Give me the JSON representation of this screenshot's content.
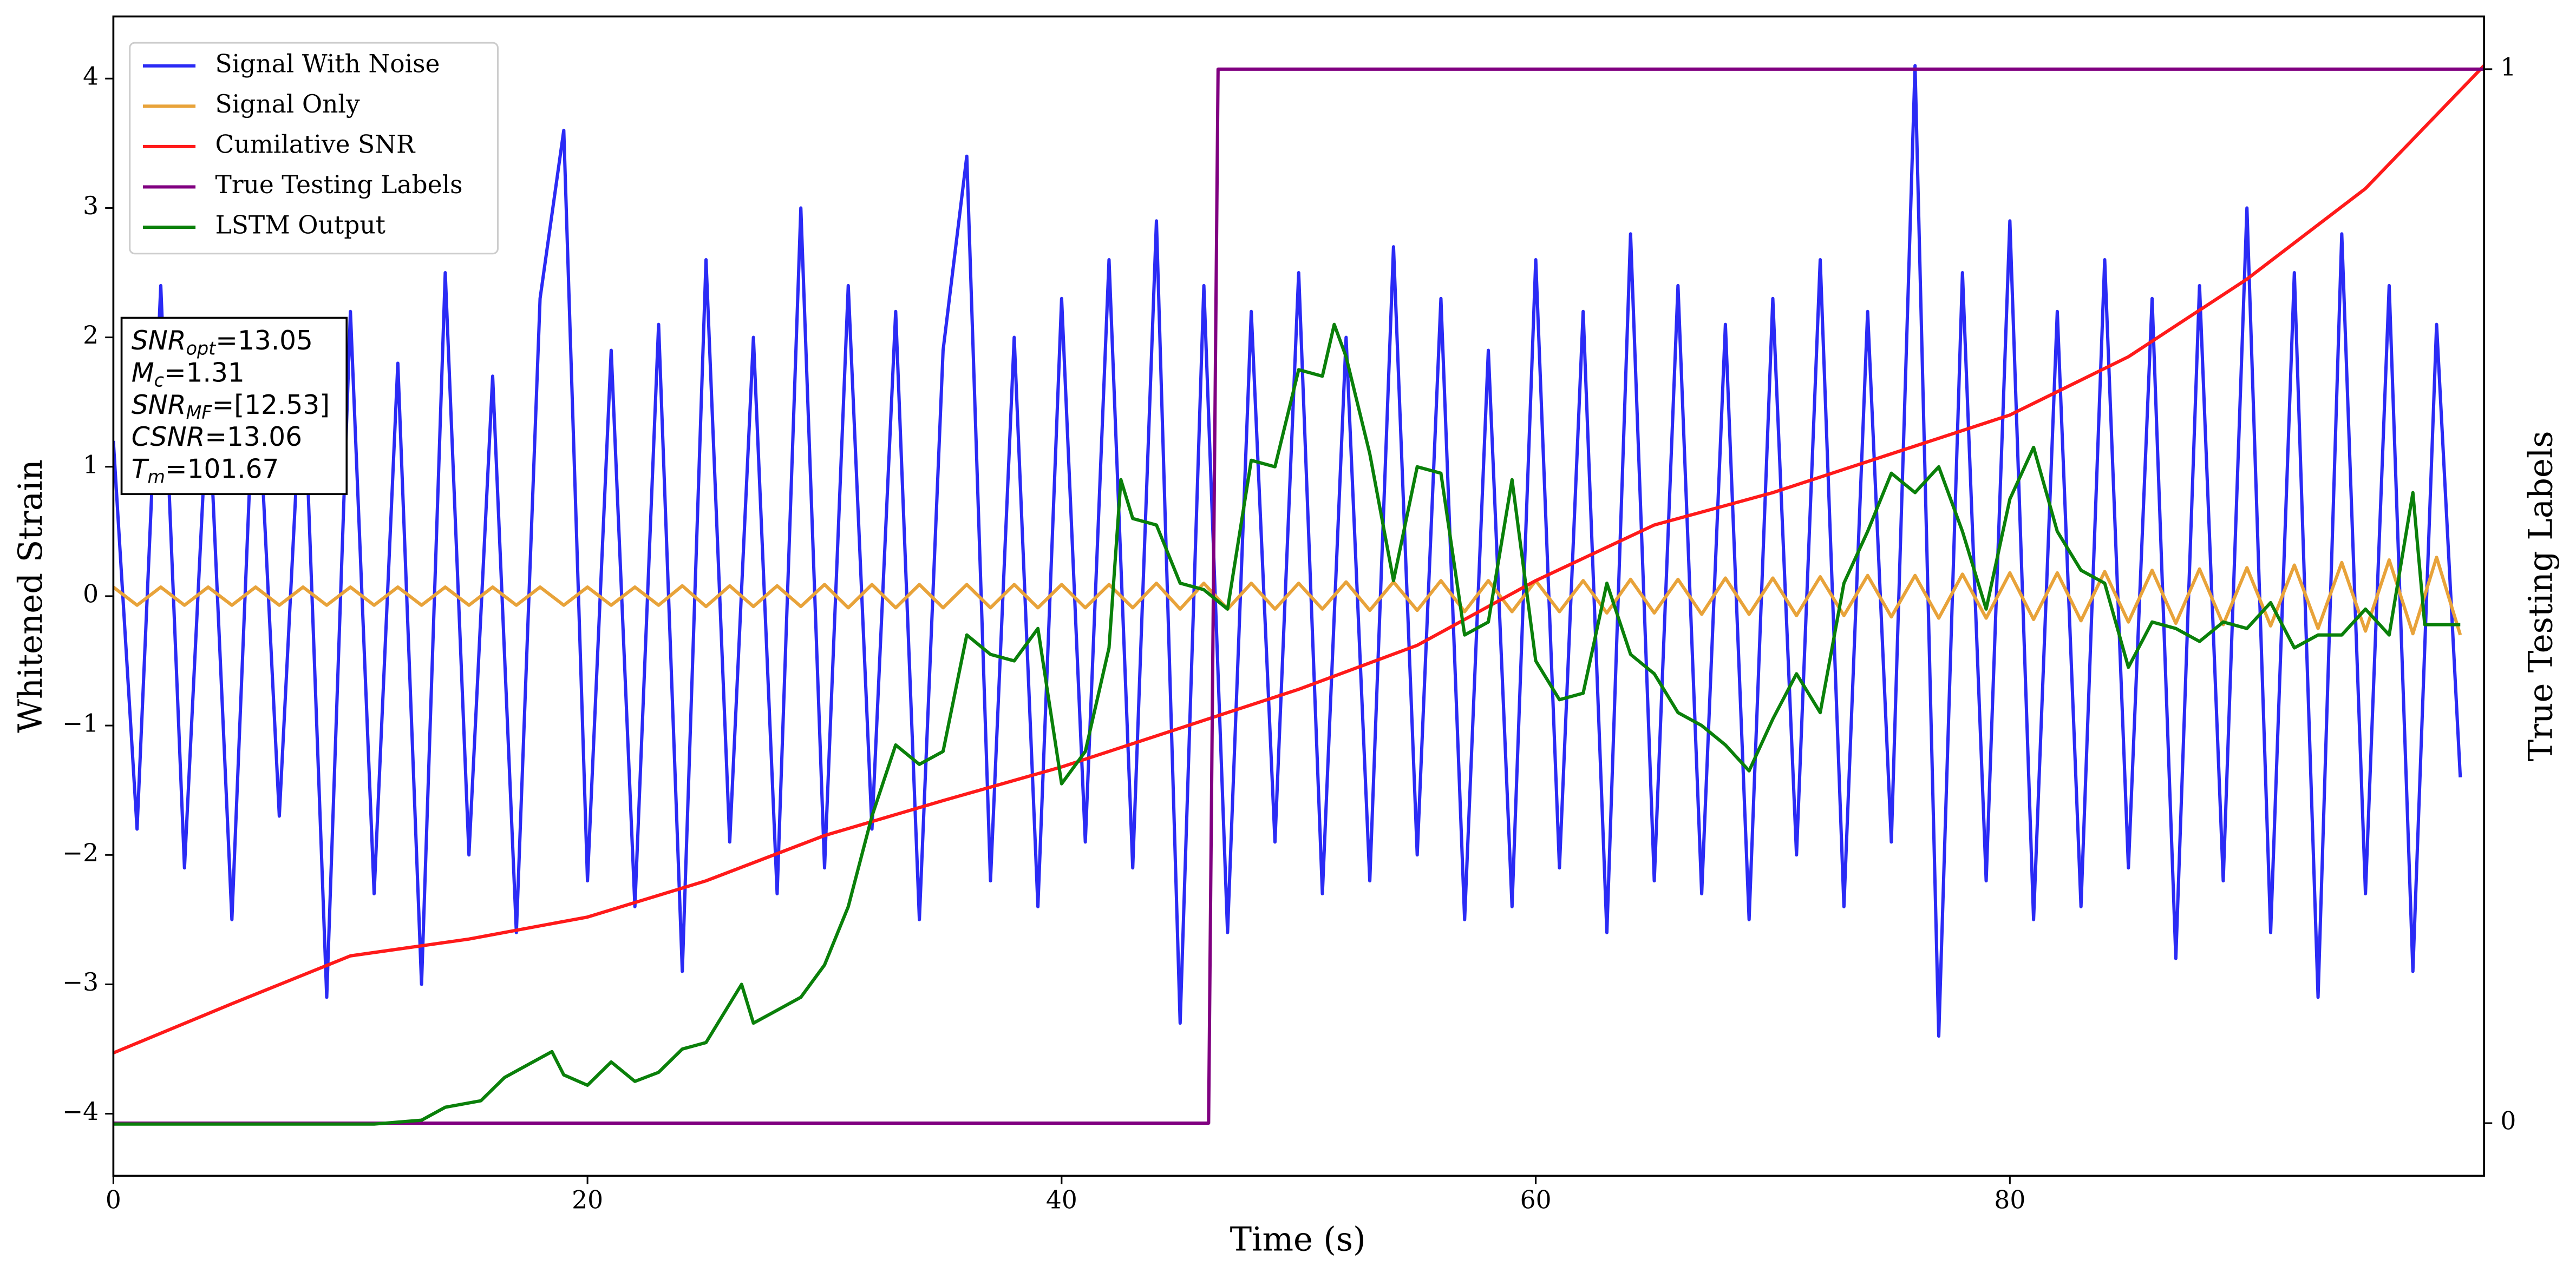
{
  "chart_data": {
    "type": "line",
    "xlabel": "Time (s)",
    "ylabel": "Whitened Strain",
    "y2label": "True Testing Labels",
    "xlim": [
      0,
      100
    ],
    "xticks": [
      0,
      20,
      40,
      60,
      80
    ],
    "ylim": [
      -4.48,
      4.48
    ],
    "yticks": [
      {
        "value": -4,
        "label": "−4"
      },
      {
        "value": -3,
        "label": "−3"
      },
      {
        "value": -2,
        "label": "−2"
      },
      {
        "value": -1,
        "label": "−1"
      },
      0,
      1,
      2,
      3,
      4
    ],
    "y2lim": [
      -0.05,
      1.05
    ],
    "y2ticks": [
      0,
      1
    ],
    "legend": "upper left",
    "annotation": [
      {
        "main": "SNR",
        "sub": "opt",
        "rest": "=13.05"
      },
      {
        "main": "M",
        "sub": "c",
        "rest": "=1.31"
      },
      {
        "main": "SNR",
        "sub": "MF",
        "rest": "=[12.53]"
      },
      {
        "main": "CSNR",
        "sub": null,
        "rest": "=13.06"
      },
      {
        "main": "T",
        "sub": "m",
        "rest": "=101.67"
      }
    ],
    "series": [
      {
        "name": "Signal With Noise",
        "color": "#2b2bf5",
        "x": [
          0,
          1,
          2,
          3,
          4,
          5,
          6,
          7,
          8,
          9,
          10,
          11,
          12,
          13,
          14,
          15,
          16,
          17,
          18,
          19,
          20,
          21,
          22,
          23,
          24,
          25,
          26,
          27,
          28,
          29,
          30,
          31,
          32,
          33,
          34,
          35,
          36,
          37,
          38,
          39,
          40,
          41,
          42,
          43,
          44,
          45,
          46,
          47,
          48,
          49,
          50,
          51,
          52,
          53,
          54,
          55,
          56,
          57,
          58,
          59,
          60,
          61,
          62,
          63,
          64,
          65,
          66,
          67,
          68,
          69,
          70,
          71,
          72,
          73,
          74,
          75,
          76,
          77,
          78,
          79,
          80,
          81,
          82,
          83,
          84,
          85,
          86,
          87,
          88,
          89,
          90,
          91,
          92,
          93,
          94,
          95,
          96,
          97,
          98,
          99
        ],
        "values": [
          1.2,
          -1.8,
          2.4,
          -2.1,
          1.6,
          -2.5,
          2.0,
          -1.7,
          1.9,
          -3.1,
          2.2,
          -2.3,
          1.8,
          -3.0,
          2.5,
          -2.0,
          1.7,
          -2.6,
          2.3,
          3.6,
          -2.2,
          1.9,
          -2.4,
          2.1,
          -2.9,
          2.6,
          -1.9,
          2.0,
          -2.3,
          3.0,
          -2.1,
          2.4,
          -1.8,
          2.2,
          -2.5,
          1.9,
          3.4,
          -2.2,
          2.0,
          -2.4,
          2.3,
          -1.9,
          2.6,
          -2.1,
          2.9,
          -3.3,
          2.4,
          -2.6,
          2.2,
          -1.9,
          2.5,
          -2.3,
          2.0,
          -2.2,
          2.7,
          -2.0,
          2.3,
          -2.5,
          1.9,
          -2.4,
          2.6,
          -2.1,
          2.2,
          -2.6,
          2.8,
          -2.2,
          2.4,
          -2.3,
          2.1,
          -2.5,
          2.3,
          -2.0,
          2.6,
          -2.4,
          2.2,
          -1.9,
          4.1,
          -3.4,
          2.5,
          -2.2,
          2.9,
          -2.5,
          2.2,
          -2.4,
          2.6,
          -2.1,
          2.3,
          -2.8,
          2.4,
          -2.2,
          3.0,
          -2.6,
          2.5,
          -3.1,
          2.8,
          -2.3,
          2.4,
          -2.9,
          2.1,
          -1.4
        ]
      },
      {
        "name": "Signal Only",
        "color": "#e8a33a",
        "x": [
          0,
          1,
          2,
          3,
          4,
          5,
          6,
          7,
          8,
          9,
          10,
          11,
          12,
          13,
          14,
          15,
          16,
          17,
          18,
          19,
          20,
          21,
          22,
          23,
          24,
          25,
          26,
          27,
          28,
          29,
          30,
          31,
          32,
          33,
          34,
          35,
          36,
          37,
          38,
          39,
          40,
          41,
          42,
          43,
          44,
          45,
          46,
          47,
          48,
          49,
          50,
          51,
          52,
          53,
          54,
          55,
          56,
          57,
          58,
          59,
          60,
          61,
          62,
          63,
          64,
          65,
          66,
          67,
          68,
          69,
          70,
          71,
          72,
          73,
          74,
          75,
          76,
          77,
          78,
          79,
          80,
          81,
          82,
          83,
          84,
          85,
          86,
          87,
          88,
          89,
          90,
          91,
          92,
          93,
          94,
          95,
          96,
          97,
          98,
          99
        ],
        "values": [
          0.07,
          -0.07,
          0.07,
          -0.07,
          0.07,
          -0.07,
          0.07,
          -0.07,
          0.07,
          -0.07,
          0.07,
          -0.07,
          0.07,
          -0.07,
          0.07,
          -0.07,
          0.07,
          -0.07,
          0.07,
          -0.07,
          0.07,
          -0.07,
          0.07,
          -0.07,
          0.08,
          -0.08,
          0.08,
          -0.08,
          0.08,
          -0.08,
          0.09,
          -0.09,
          0.09,
          -0.09,
          0.09,
          -0.09,
          0.09,
          -0.09,
          0.09,
          -0.09,
          0.09,
          -0.09,
          0.09,
          -0.09,
          0.1,
          -0.1,
          0.1,
          -0.1,
          0.1,
          -0.1,
          0.1,
          -0.1,
          0.11,
          -0.11,
          0.11,
          -0.11,
          0.12,
          -0.12,
          0.12,
          -0.12,
          0.12,
          -0.12,
          0.12,
          -0.13,
          0.13,
          -0.13,
          0.13,
          -0.14,
          0.14,
          -0.14,
          0.14,
          -0.15,
          0.15,
          -0.15,
          0.16,
          -0.16,
          0.16,
          -0.17,
          0.17,
          -0.17,
          0.18,
          -0.18,
          0.18,
          -0.19,
          0.19,
          -0.2,
          0.2,
          -0.21,
          0.21,
          -0.22,
          0.22,
          -0.23,
          0.24,
          -0.25,
          0.26,
          -0.27,
          0.28,
          -0.29,
          0.3,
          -0.3
        ]
      },
      {
        "name": "Cumilative SNR",
        "color": "#ff1a1a",
        "x": [
          0,
          5,
          10,
          15,
          20,
          25,
          30,
          35,
          40,
          45,
          50,
          55,
          60,
          65,
          70,
          75,
          80,
          85,
          90,
          95,
          100
        ],
        "values": [
          -3.53,
          -3.15,
          -2.78,
          -2.65,
          -2.48,
          -2.2,
          -1.85,
          -1.58,
          -1.32,
          -1.02,
          -0.72,
          -0.38,
          0.12,
          0.55,
          0.8,
          1.1,
          1.4,
          1.85,
          2.45,
          3.15,
          4.1
        ]
      },
      {
        "name": "True Testing Labels",
        "color": "#800080",
        "axis": "y2",
        "x": [
          0,
          46.2,
          46.6,
          100
        ],
        "values": [
          0,
          0,
          1,
          1
        ]
      },
      {
        "name": "LSTM Output",
        "color": "#0a800a",
        "x": [
          0,
          11,
          13,
          14,
          15.5,
          16.5,
          17.5,
          18.5,
          19,
          20,
          21,
          22,
          23,
          24,
          25,
          26.5,
          27,
          28,
          29,
          30,
          31,
          32,
          33,
          34,
          35,
          36,
          37,
          38,
          39,
          40,
          41,
          42,
          42.5,
          43,
          44,
          45,
          46,
          47,
          48,
          49,
          50,
          51,
          51.5,
          52,
          53,
          54,
          55,
          56,
          57,
          58,
          59,
          60,
          61,
          62,
          63,
          64,
          65,
          66,
          67,
          68,
          69,
          70,
          71,
          72,
          73,
          74,
          75,
          76,
          77,
          78,
          79,
          80,
          81,
          82,
          83,
          84,
          85,
          86,
          87,
          88,
          89,
          90,
          91,
          92,
          93,
          94,
          95,
          96,
          97,
          97.5,
          99
        ],
        "values": [
          -4.08,
          -4.08,
          -4.05,
          -3.95,
          -3.9,
          -3.72,
          -3.62,
          -3.52,
          -3.7,
          -3.78,
          -3.6,
          -3.75,
          -3.68,
          -3.5,
          -3.45,
          -3.0,
          -3.3,
          -3.2,
          -3.1,
          -2.85,
          -2.4,
          -1.7,
          -1.15,
          -1.3,
          -1.2,
          -0.3,
          -0.45,
          -0.5,
          -0.25,
          -1.45,
          -1.2,
          -0.4,
          0.9,
          0.6,
          0.55,
          0.1,
          0.05,
          -0.1,
          1.05,
          1.0,
          1.75,
          1.7,
          2.1,
          1.85,
          1.1,
          0.12,
          1.0,
          0.95,
          -0.3,
          -0.2,
          0.9,
          -0.5,
          -0.8,
          -0.75,
          0.1,
          -0.45,
          -0.6,
          -0.9,
          -1.0,
          -1.15,
          -1.35,
          -0.95,
          -0.6,
          -0.9,
          0.1,
          0.5,
          0.95,
          0.8,
          1.0,
          0.5,
          -0.1,
          0.75,
          1.15,
          0.5,
          0.2,
          0.1,
          -0.55,
          -0.2,
          -0.25,
          -0.35,
          -0.2,
          -0.25,
          -0.05,
          -0.4,
          -0.3,
          -0.3,
          -0.1,
          -0.3,
          0.8,
          -0.22,
          -0.22
        ]
      }
    ]
  }
}
